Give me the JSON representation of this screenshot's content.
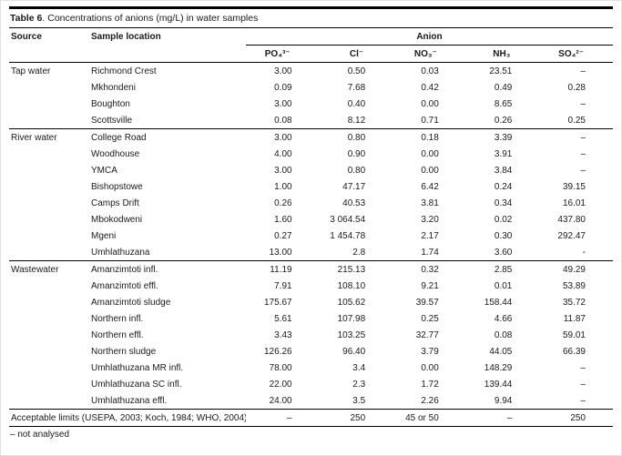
{
  "caption": {
    "label": "Table 6",
    "text": ". Concentrations of anions (mg/L) in water samples"
  },
  "columns": {
    "source": "Source",
    "sample_location": "Sample location",
    "anion_group": "Anion",
    "anions": [
      {
        "id": "po4",
        "label": "PO₄³⁻"
      },
      {
        "id": "cl",
        "label": "Cl⁻"
      },
      {
        "id": "no3",
        "label": "NO₃⁻"
      },
      {
        "id": "nh3",
        "label": "NH₃"
      },
      {
        "id": "so4",
        "label": "SO₄²⁻"
      }
    ]
  },
  "sections": [
    {
      "source": "Tap water",
      "rows": [
        {
          "location": "Richmond Crest",
          "values": [
            "3.00",
            "0.50",
            "0.03",
            "23.51",
            "–"
          ]
        },
        {
          "location": "Mkhondeni",
          "values": [
            "0.09",
            "7.68",
            "0.42",
            "0.49",
            "0.28"
          ]
        },
        {
          "location": "Boughton",
          "values": [
            "3.00",
            "0.40",
            "0.00",
            "8.65",
            "–"
          ]
        },
        {
          "location": "Scottsville",
          "values": [
            "0.08",
            "8.12",
            "0.71",
            "0.26",
            "0.25"
          ]
        }
      ]
    },
    {
      "source": "River water",
      "rows": [
        {
          "location": "College Road",
          "values": [
            "3.00",
            "0.80",
            "0.18",
            "3.39",
            "–"
          ]
        },
        {
          "location": "Woodhouse",
          "values": [
            "4.00",
            "0.90",
            "0.00",
            "3.91",
            "–"
          ]
        },
        {
          "location": "YMCA",
          "values": [
            "3.00",
            "0.80",
            "0.00",
            "3.84",
            "–"
          ]
        },
        {
          "location": "Bishopstowe",
          "values": [
            "1.00",
            "47.17",
            "6.42",
            "0.24",
            "39.15"
          ]
        },
        {
          "location": "Camps Drift",
          "values": [
            "0.26",
            "40.53",
            "3.81",
            "0.34",
            "16.01"
          ]
        },
        {
          "location": "Mbokodweni",
          "values": [
            "1.60",
            "3 064.54",
            "3.20",
            "0.02",
            "437.80"
          ]
        },
        {
          "location": "Mgeni",
          "values": [
            "0.27",
            "1 454.78",
            "2.17",
            "0.30",
            "292.47"
          ]
        },
        {
          "location": "Umhlathuzana",
          "values": [
            "13.00",
            "2.8",
            "1.74",
            "3.60",
            "-"
          ]
        }
      ]
    },
    {
      "source": "Wastewater",
      "rows": [
        {
          "location": "Amanzimtoti infl.",
          "values": [
            "11.19",
            "215.13",
            "0.32",
            "2.85",
            "49.29"
          ]
        },
        {
          "location": "Amanzimtoti effl.",
          "values": [
            "7.91",
            "108.10",
            "9.21",
            "0.01",
            "53.89"
          ]
        },
        {
          "location": "Amanzimtoti sludge",
          "values": [
            "175.67",
            "105.62",
            "39.57",
            "158.44",
            "35.72"
          ]
        },
        {
          "location": "Northern infl.",
          "values": [
            "5.61",
            "107.98",
            "0.25",
            "4.66",
            "11.87"
          ]
        },
        {
          "location": "Northern effl.",
          "values": [
            "3.43",
            "103.25",
            "32.77",
            "0.08",
            "59.01"
          ]
        },
        {
          "location": "Northern sludge",
          "values": [
            "126.26",
            "96.40",
            "3.79",
            "44.05",
            "66.39"
          ]
        },
        {
          "location": "Umhlathuzana MR infl.",
          "values": [
            "78.00",
            "3.4",
            "0.00",
            "148.29",
            "–"
          ]
        },
        {
          "location": "Umhlathuzana SC infl.",
          "values": [
            "22.00",
            "2.3",
            "1.72",
            "139.44",
            "–"
          ]
        },
        {
          "location": "Umhlathuzana effl.",
          "values": [
            "24.00",
            "3.5",
            "2.26",
            "9.94",
            "–"
          ]
        }
      ]
    }
  ],
  "limits": {
    "label": "Acceptable limits (USEPA, 2003; Koch, 1984; WHO, 2004)",
    "values": [
      "–",
      "250",
      "45 or 50",
      "–",
      "250"
    ]
  },
  "footnote": "– not analysed"
}
